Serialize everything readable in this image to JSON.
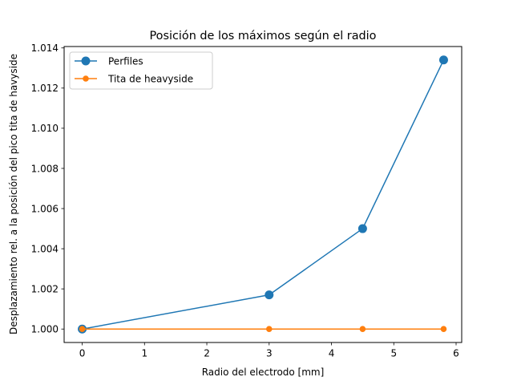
{
  "chart_data": {
    "type": "line",
    "title": "Posición de los máximos según el radio",
    "xlabel": "Radio del electrodo [mm]",
    "ylabel": "Desplazamiento rel. a la posición del pico tita de havyside",
    "xlim": [
      -0.29,
      6.09
    ],
    "ylim": [
      0.99933,
      1.01407
    ],
    "x_ticks": [
      0,
      1,
      2,
      3,
      4,
      5,
      6
    ],
    "x_tick_labels": [
      "0",
      "1",
      "2",
      "3",
      "4",
      "5",
      "6"
    ],
    "y_ticks": [
      1.0,
      1.002,
      1.004,
      1.006,
      1.008,
      1.01,
      1.012,
      1.014
    ],
    "y_tick_labels": [
      "1.000",
      "1.002",
      "1.004",
      "1.006",
      "1.008",
      "1.010",
      "1.012",
      "1.014"
    ],
    "grid": false,
    "legend_position": "top-left",
    "series": [
      {
        "name": "Perfiles",
        "color": "#1f77b4",
        "marker": "circle-large",
        "x": [
          0,
          3,
          4.5,
          5.8
        ],
        "y": [
          1.0,
          1.0017,
          1.005,
          1.0134
        ]
      },
      {
        "name": "Tita de heavyside",
        "color": "#ff7f0e",
        "marker": "circle-small",
        "x": [
          0,
          3,
          4.5,
          5.8
        ],
        "y": [
          1.0,
          1.0,
          1.0,
          1.0
        ]
      }
    ]
  }
}
